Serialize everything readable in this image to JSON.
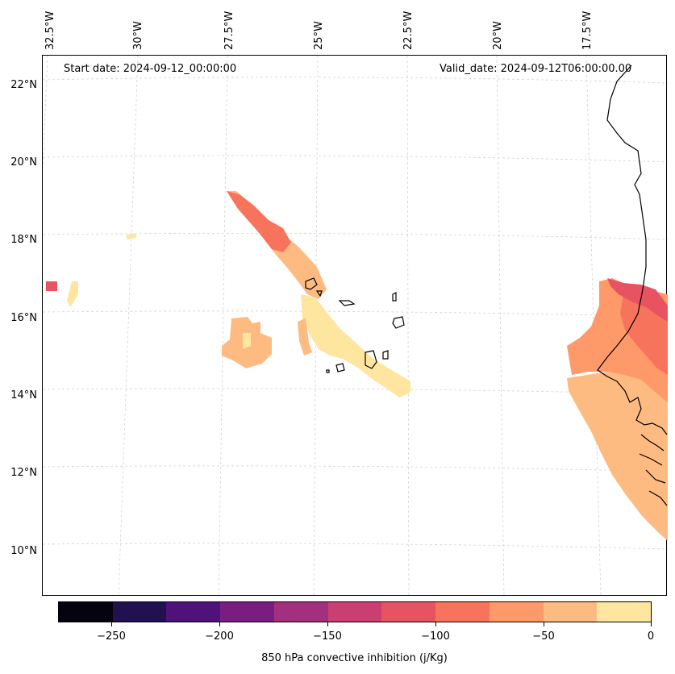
{
  "annotations": {
    "start_date": "Start date: 2024-09-12_00:00:00",
    "valid_date": "Valid_date: 2024-09-12T06:00:00.00"
  },
  "lon_labels": [
    "32.5°W",
    "30°W",
    "27.5°W",
    "25°W",
    "22.5°W",
    "20°W",
    "17.5°W"
  ],
  "lat_labels": [
    "22°N",
    "20°N",
    "18°N",
    "16°N",
    "14°N",
    "12°N",
    "10°N"
  ],
  "colorbar": {
    "label": "850 hPa convective inhibition (j/Kg)",
    "tick_labels": [
      "−250",
      "−200",
      "−150",
      "−100",
      "−50",
      "0"
    ],
    "colors": [
      "#04030f",
      "#221150",
      "#4f127b",
      "#7a1d81",
      "#a3307e",
      "#cb3e72",
      "#e85362",
      "#f7735c",
      "#fe9969",
      "#febb81",
      "#fee6a0"
    ]
  },
  "field_colors": {
    "level_0_to_-25": "#fee6a0",
    "level_-25_to_-50": "#febb81",
    "level_-50_to_-75": "#fe9969",
    "level_-75_to_-100": "#f7735c",
    "level_-100_to_-125": "#e85362",
    "coastline": "#000000"
  }
}
